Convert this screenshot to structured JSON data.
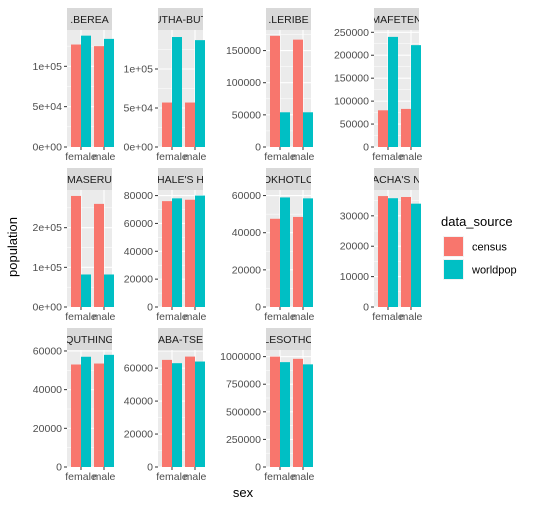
{
  "chart_data": {
    "type": "bar",
    "layout": "facet_wrap",
    "xlabel": "sex",
    "ylabel": "population",
    "categories": [
      "female",
      "male"
    ],
    "legend": {
      "title": "data_source",
      "placement": "right",
      "entries": [
        {
          "name": "census",
          "color": "#F8766D"
        },
        {
          "name": "worldpop",
          "color": "#00BFC4"
        }
      ]
    },
    "grid": true,
    "panels": [
      {
        "strip": ".BEREA",
        "ylim": [
          0,
          145000
        ],
        "yticks": [
          {
            "v": 0,
            "label": "0e+00"
          },
          {
            "v": 50000,
            "label": "5e+04"
          },
          {
            "v": 100000,
            "label": "1e+05"
          }
        ],
        "series": [
          {
            "name": "census",
            "values": [
              127000,
              125000
            ]
          },
          {
            "name": "worldpop",
            "values": [
              138000,
              134000
            ]
          }
        ]
      },
      {
        "strip": "UTHA-BUT",
        "ylim": [
          0,
          150000
        ],
        "yticks": [
          {
            "v": 0,
            "label": "0e+00"
          },
          {
            "v": 50000,
            "label": "5e+04"
          },
          {
            "v": 100000,
            "label": "1e+05"
          }
        ],
        "series": [
          {
            "name": "census",
            "values": [
              57000,
              57000
            ]
          },
          {
            "name": "worldpop",
            "values": [
              141000,
              137000
            ]
          }
        ]
      },
      {
        "strip": ".LERIBE",
        "ylim": [
          0,
          182000
        ],
        "yticks": [
          {
            "v": 0,
            "label": "0"
          },
          {
            "v": 50000,
            "label": "50000"
          },
          {
            "v": 100000,
            "label": "100000"
          },
          {
            "v": 150000,
            "label": "150000"
          }
        ],
        "series": [
          {
            "name": "census",
            "values": [
              173000,
              167000
            ]
          },
          {
            "name": "worldpop",
            "values": [
              54000,
              54000
            ]
          }
        ]
      },
      {
        "strip": "MAFETEN",
        "ylim": [
          0,
          255000
        ],
        "yticks": [
          {
            "v": 0,
            "label": "0"
          },
          {
            "v": 50000,
            "label": "50000"
          },
          {
            "v": 100000,
            "label": "100000"
          },
          {
            "v": 150000,
            "label": "150000"
          },
          {
            "v": 200000,
            "label": "200000"
          },
          {
            "v": 250000,
            "label": "250000"
          }
        ],
        "series": [
          {
            "name": "census",
            "values": [
              80000,
              83000
            ]
          },
          {
            "name": "worldpop",
            "values": [
              240000,
              222000
            ]
          }
        ]
      },
      {
        "strip": "MASERU",
        "ylim": [
          0,
          295000
        ],
        "yticks": [
          {
            "v": 0,
            "label": "0e+00"
          },
          {
            "v": 100000,
            "label": "1e+05"
          },
          {
            "v": 200000,
            "label": "2e+05"
          }
        ],
        "series": [
          {
            "name": "census",
            "values": [
              280000,
              260000
            ]
          },
          {
            "name": "worldpop",
            "values": [
              82000,
              82000
            ]
          }
        ]
      },
      {
        "strip": "HALE'S H",
        "ylim": [
          0,
          84000
        ],
        "yticks": [
          {
            "v": 0,
            "label": "0"
          },
          {
            "v": 20000,
            "label": "20000"
          },
          {
            "v": 40000,
            "label": "40000"
          },
          {
            "v": 60000,
            "label": "60000"
          },
          {
            "v": 80000,
            "label": "80000"
          }
        ],
        "series": [
          {
            "name": "census",
            "values": [
              76000,
              77000
            ]
          },
          {
            "name": "worldpop",
            "values": [
              78000,
              80000
            ]
          }
        ]
      },
      {
        "strip": "OKHOTLO",
        "ylim": [
          0,
          63000
        ],
        "yticks": [
          {
            "v": 0,
            "label": "0"
          },
          {
            "v": 20000,
            "label": "20000"
          },
          {
            "v": 40000,
            "label": "40000"
          },
          {
            "v": 60000,
            "label": "60000"
          }
        ],
        "series": [
          {
            "name": "census",
            "values": [
              47500,
              48500
            ]
          },
          {
            "name": "worldpop",
            "values": [
              59000,
              58500
            ]
          }
        ]
      },
      {
        "strip": "ACHA'S N",
        "ylim": [
          0,
          38500
        ],
        "yticks": [
          {
            "v": 0,
            "label": "0"
          },
          {
            "v": 10000,
            "label": "10000"
          },
          {
            "v": 20000,
            "label": "20000"
          },
          {
            "v": 30000,
            "label": "30000"
          }
        ],
        "series": [
          {
            "name": "census",
            "values": [
              36500,
              36200
            ]
          },
          {
            "name": "worldpop",
            "values": [
              35800,
              34000
            ]
          }
        ]
      },
      {
        "strip": "QUTHING",
        "ylim": [
          0,
          60500
        ],
        "yticks": [
          {
            "v": 0,
            "label": "0"
          },
          {
            "v": 20000,
            "label": "20000"
          },
          {
            "v": 40000,
            "label": "40000"
          },
          {
            "v": 60000,
            "label": "60000"
          }
        ],
        "series": [
          {
            "name": "census",
            "values": [
              53000,
              53500
            ]
          },
          {
            "name": "worldpop",
            "values": [
              57000,
              58000
            ]
          }
        ]
      },
      {
        "strip": "ABA-TSE",
        "ylim": [
          0,
          71000
        ],
        "yticks": [
          {
            "v": 0,
            "label": "0"
          },
          {
            "v": 20000,
            "label": "20000"
          },
          {
            "v": 40000,
            "label": "40000"
          },
          {
            "v": 60000,
            "label": "60000"
          }
        ],
        "series": [
          {
            "name": "census",
            "values": [
              65000,
              67000
            ]
          },
          {
            "name": "worldpop",
            "values": [
              63000,
              64000
            ]
          }
        ]
      },
      {
        "strip": "LESOTHO",
        "ylim": [
          0,
          1060000
        ],
        "yticks": [
          {
            "v": 0,
            "label": "0"
          },
          {
            "v": 250000,
            "label": "250000"
          },
          {
            "v": 500000,
            "label": "500000"
          },
          {
            "v": 750000,
            "label": "750000"
          },
          {
            "v": 1000000,
            "label": "1000000"
          }
        ],
        "series": [
          {
            "name": "census",
            "values": [
              1000000,
              980000
            ]
          },
          {
            "name": "worldpop",
            "values": [
              950000,
              930000
            ]
          }
        ]
      }
    ]
  }
}
